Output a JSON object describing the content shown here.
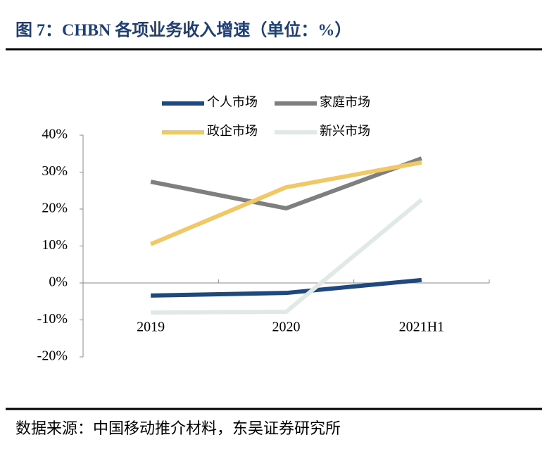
{
  "chart_data": {
    "type": "line",
    "title": "图 7：CHBN 各项业务收入增速（单位：%）",
    "source": "数据来源：中国移动推介材料，东吴证券研究所",
    "categories": [
      "2019",
      "2020",
      "2021H1"
    ],
    "series": [
      {
        "name": "个人市场",
        "color": "#1f497d",
        "values": [
          -3.4,
          -2.7,
          0.8
        ]
      },
      {
        "name": "家庭市场",
        "color": "#7f7f7f",
        "values": [
          27.4,
          20.2,
          33.7
        ]
      },
      {
        "name": "政企市场",
        "color": "#f0c868",
        "values": [
          10.5,
          25.9,
          32.6
        ]
      },
      {
        "name": "新兴市场",
        "color": "#e0e9e5",
        "values": [
          -8.0,
          -7.8,
          22.5
        ]
      }
    ],
    "ylim": [
      -20,
      40
    ],
    "yticks": [
      {
        "value": -20,
        "label": "-20%"
      },
      {
        "value": -10,
        "label": "-10%"
      },
      {
        "value": 0,
        "label": "0%"
      },
      {
        "value": 10,
        "label": "10%"
      },
      {
        "value": 20,
        "label": "20%"
      },
      {
        "value": 30,
        "label": "30%"
      },
      {
        "value": 40,
        "label": "40%"
      }
    ],
    "grid": false
  }
}
